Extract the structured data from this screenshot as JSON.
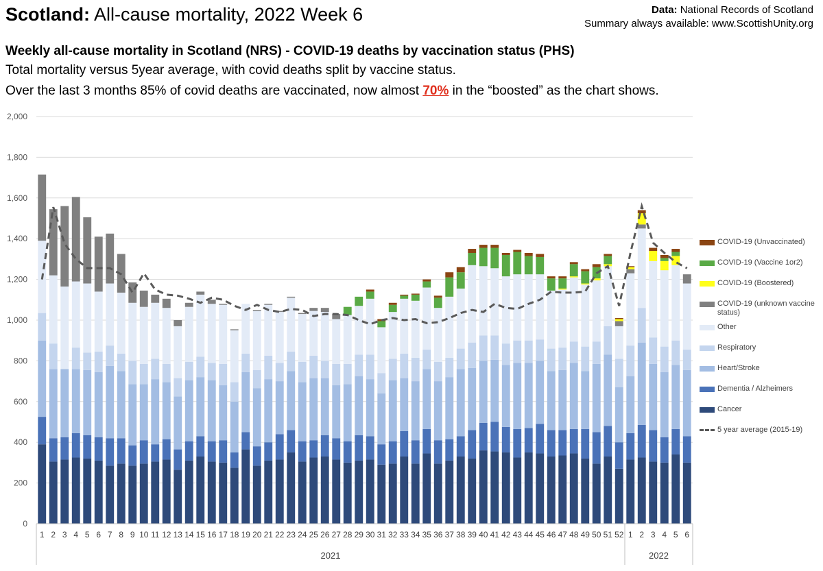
{
  "header": {
    "title_bold": "Scotland:",
    "title_rest": " All-cause mortality, 2022 Week 6",
    "source_label": "Data:",
    "source_value": " National Records of Scotland",
    "summary": "Summary always available: www.ScottishUnity.org",
    "subtitle": "Weekly all-cause mortality in Scotland (NRS) - COVID-19 deaths by vaccination status (PHS)",
    "line2": "Total mortality versus 5year average, with covid deaths split by vaccine status.",
    "line3_a": " Over the last 3 months 85% of covid deaths are vaccinated, now almost ",
    "line3_hl": "70%",
    "line3_b": " in the “boosted” as the chart shows."
  },
  "chart_data": {
    "type": "bar",
    "stacked": true,
    "ylim": [
      0,
      2000
    ],
    "yticks": [
      "0",
      "200",
      "400",
      "600",
      "800",
      "1,000",
      "1,200",
      "1,400",
      "1,600",
      "1,800",
      "2,000"
    ],
    "grid": true,
    "categories": [
      "1",
      "2",
      "3",
      "4",
      "5",
      "6",
      "7",
      "8",
      "9",
      "10",
      "11",
      "12",
      "13",
      "14",
      "15",
      "16",
      "17",
      "18",
      "19",
      "20",
      "21",
      "22",
      "23",
      "24",
      "25",
      "26",
      "27",
      "28",
      "29",
      "30",
      "31",
      "32",
      "33",
      "34",
      "35",
      "36",
      "37",
      "38",
      "39",
      "40",
      "41",
      "42",
      "43",
      "44",
      "45",
      "46",
      "47",
      "48",
      "49",
      "50",
      "51",
      "52",
      "1",
      "2",
      "3",
      "4",
      "5",
      "6"
    ],
    "year_groups": [
      {
        "label": "2021",
        "start": 0,
        "end": 51
      },
      {
        "label": "2022",
        "start": 52,
        "end": 57
      }
    ],
    "series": [
      {
        "name": "Cancer",
        "color": "#2e4a7a",
        "values": [
          390,
          305,
          315,
          325,
          320,
          310,
          285,
          295,
          285,
          295,
          305,
          315,
          265,
          310,
          330,
          305,
          300,
          275,
          365,
          285,
          310,
          315,
          350,
          305,
          325,
          330,
          315,
          300,
          310,
          315,
          290,
          295,
          330,
          295,
          345,
          295,
          310,
          330,
          320,
          360,
          355,
          350,
          325,
          350,
          345,
          330,
          335,
          345,
          320,
          295,
          330,
          270,
          315,
          325,
          305,
          300,
          340,
          300
        ]
      },
      {
        "name": "Dementia / Alzheimers",
        "color": "#4a72b8",
        "values": [
          135,
          115,
          110,
          120,
          115,
          115,
          135,
          125,
          100,
          115,
          85,
          100,
          100,
          95,
          100,
          100,
          110,
          75,
          85,
          95,
          90,
          125,
          110,
          100,
          85,
          105,
          105,
          105,
          125,
          115,
          100,
          110,
          125,
          115,
          120,
          115,
          105,
          100,
          140,
          135,
          145,
          125,
          140,
          120,
          145,
          130,
          125,
          120,
          145,
          155,
          150,
          130,
          130,
          160,
          155,
          125,
          125,
          130
        ]
      },
      {
        "name": "Heart/Stroke",
        "color": "#a3bde3",
        "values": [
          375,
          340,
          335,
          315,
          320,
          320,
          355,
          330,
          300,
          275,
          320,
          280,
          260,
          300,
          290,
          300,
          270,
          250,
          295,
          285,
          310,
          260,
          290,
          290,
          305,
          280,
          260,
          280,
          290,
          280,
          250,
          300,
          260,
          290,
          295,
          290,
          305,
          330,
          305,
          305,
          305,
          305,
          325,
          320,
          310,
          290,
          295,
          325,
          285,
          335,
          350,
          270,
          280,
          405,
          325,
          320,
          315,
          325
        ]
      },
      {
        "name": "Respiratory",
        "color": "#c4d5ee",
        "values": [
          135,
          125,
          0,
          105,
          85,
          100,
          100,
          85,
          115,
          100,
          100,
          90,
          90,
          90,
          100,
          85,
          105,
          95,
          90,
          90,
          115,
          90,
          95,
          100,
          110,
          85,
          105,
          100,
          105,
          120,
          100,
          105,
          120,
          115,
          95,
          95,
          95,
          100,
          125,
          125,
          120,
          105,
          110,
          110,
          105,
          110,
          110,
          105,
          120,
          110,
          140,
          140,
          150,
          170,
          130,
          125,
          120,
          100
        ]
      },
      {
        "name": "Other",
        "color": "#e3ebf7",
        "values": [
          355,
          335,
          405,
          325,
          340,
          295,
          305,
          300,
          285,
          280,
          275,
          275,
          255,
          270,
          305,
          290,
          290,
          255,
          245,
          290,
          250,
          250,
          265,
          235,
          220,
          240,
          220,
          240,
          240,
          275,
          225,
          230,
          270,
          280,
          305,
          265,
          300,
          295,
          380,
          340,
          330,
          330,
          325,
          325,
          320,
          285,
          285,
          315,
          305,
          300,
          295,
          160,
          355,
          390,
          375,
          375,
          370,
          325
        ]
      },
      {
        "name": "COVID-19 (unknown vaccine status)",
        "color": "#808080",
        "values": [
          325,
          325,
          395,
          415,
          325,
          270,
          245,
          190,
          100,
          80,
          40,
          45,
          30,
          20,
          15,
          20,
          5,
          5,
          0,
          5,
          5,
          5,
          5,
          5,
          15,
          20,
          25,
          0,
          0,
          0,
          0,
          0,
          0,
          0,
          0,
          0,
          0,
          0,
          0,
          0,
          0,
          0,
          0,
          0,
          0,
          0,
          0,
          0,
          0,
          0,
          0,
          25,
          20,
          20,
          0,
          0,
          0,
          45
        ]
      },
      {
        "name": "COVID-19 (Boostered)",
        "color": "#ffff1a",
        "values": [
          0,
          0,
          0,
          0,
          0,
          0,
          0,
          0,
          0,
          0,
          0,
          0,
          0,
          0,
          0,
          0,
          0,
          0,
          0,
          0,
          0,
          0,
          0,
          0,
          0,
          0,
          0,
          0,
          0,
          0,
          0,
          0,
          0,
          0,
          0,
          0,
          0,
          0,
          0,
          0,
          0,
          0,
          0,
          0,
          0,
          0,
          5,
          5,
          5,
          10,
          10,
          10,
          10,
          55,
          50,
          45,
          45,
          0
        ]
      },
      {
        "name": "COVID-19 (Vaccine 1or2)",
        "color": "#5aaa46",
        "values": [
          0,
          0,
          0,
          0,
          0,
          0,
          0,
          0,
          0,
          0,
          0,
          0,
          0,
          0,
          0,
          0,
          0,
          0,
          0,
          0,
          0,
          0,
          0,
          0,
          0,
          0,
          0,
          40,
          45,
          35,
          30,
          35,
          15,
          30,
          30,
          50,
          95,
          80,
          60,
          90,
          100,
          105,
          110,
          90,
          85,
          60,
          50,
          60,
          60,
          55,
          40,
          0,
          0,
          0,
          0,
          15,
          20,
          0
        ]
      },
      {
        "name": "COVID-19 (Unvaccinated)",
        "color": "#8b4513",
        "values": [
          0,
          0,
          0,
          0,
          0,
          0,
          0,
          0,
          0,
          0,
          0,
          0,
          0,
          0,
          0,
          0,
          0,
          0,
          0,
          0,
          0,
          0,
          0,
          0,
          0,
          0,
          0,
          0,
          0,
          10,
          10,
          10,
          5,
          5,
          10,
          10,
          25,
          25,
          20,
          15,
          15,
          10,
          10,
          15,
          15,
          10,
          10,
          10,
          10,
          15,
          10,
          5,
          5,
          15,
          15,
          15,
          15,
          0
        ]
      }
    ],
    "average_line": {
      "name": "5 year average (2015-19)",
      "color": "#5a5a5a",
      "values": [
        1200,
        1555,
        1375,
        1300,
        1255,
        1255,
        1255,
        1225,
        1135,
        1230,
        1150,
        1125,
        1120,
        1105,
        1085,
        1110,
        1100,
        1070,
        1050,
        1075,
        1050,
        1040,
        1055,
        1050,
        1020,
        1030,
        1030,
        1025,
        1000,
        980,
        1000,
        1010,
        1000,
        1005,
        985,
        990,
        1010,
        1035,
        1050,
        1040,
        1080,
        1060,
        1055,
        1080,
        1100,
        1140,
        1135,
        1135,
        1140,
        1230,
        1265,
        1070,
        1330,
        1560,
        1380,
        1330,
        1285,
        1255
      ]
    },
    "legend_order": [
      "COVID-19 (Unvaccinated)",
      "COVID-19 (Vaccine 1or2)",
      "COVID-19 (Boostered)",
      "COVID-19 (unknown vaccine status)",
      "Other",
      "Respiratory",
      "Heart/Stroke",
      "Dementia / Alzheimers",
      "Cancer",
      "5 year average (2015-19)"
    ]
  }
}
